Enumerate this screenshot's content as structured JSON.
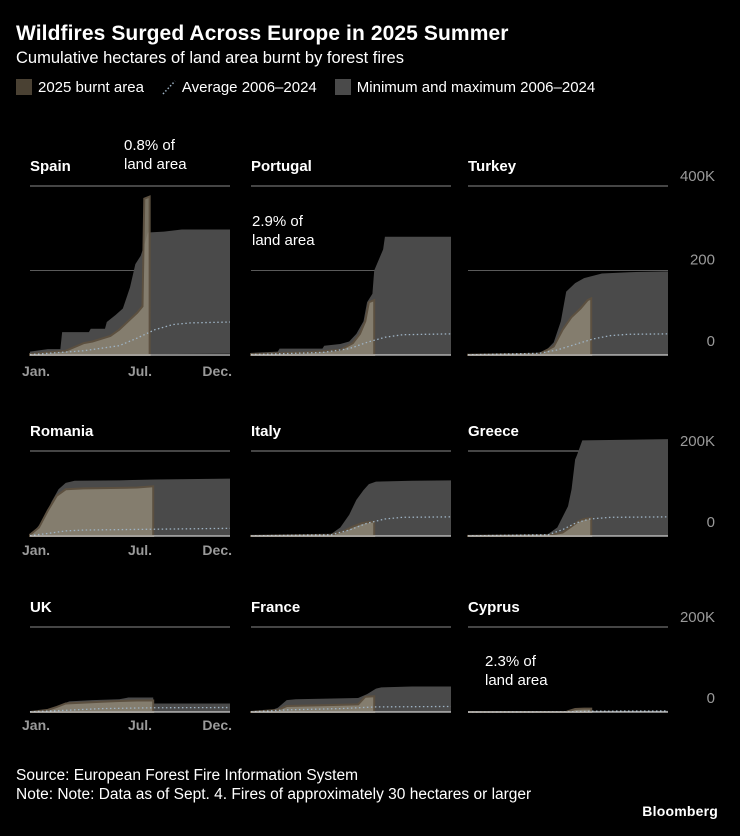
{
  "title": "Wildfires Surged Across Europe in 2025 Summer",
  "subtitle": "Cumulative hectares of land area burnt by forest fires",
  "legend": {
    "burnt": "2025 burnt area",
    "average": "Average 2006–2024",
    "minmax": "Minimum and maximum 2006–2024"
  },
  "colors": {
    "background": "#000000",
    "burnt_fill": "#8e8674",
    "burnt_edge": "#5c5040",
    "minmax_fill": "#4a4a4a",
    "average_line": "#9eb3c4",
    "grid": "#8a8a8a",
    "tick_text": "#9a9a9a"
  },
  "footer": {
    "source": "Source: European Forest Fire Information System",
    "note": "Note: Note: Data as of Sept. 4. Fires of approximately 30 hectares or larger"
  },
  "brand": "Bloomberg",
  "chart_data": [
    {
      "type": "area",
      "name": "Spain",
      "ylim": [
        0,
        400000
      ],
      "annotation": "0.8% of\nland area",
      "y_ticks": [],
      "x_ticks": [
        "Jan.",
        "Jul.",
        "Dec."
      ],
      "max": [
        [
          1,
          8000
        ],
        [
          2,
          14000
        ],
        [
          2.7,
          14000
        ],
        [
          2.8,
          54000
        ],
        [
          4.3,
          54000
        ],
        [
          4.4,
          62000
        ],
        [
          5.2,
          62000
        ],
        [
          5.3,
          78000
        ],
        [
          5.8,
          95000
        ],
        [
          6.2,
          110000
        ],
        [
          6.6,
          160000
        ],
        [
          6.9,
          215000
        ],
        [
          7.2,
          235000
        ],
        [
          7.4,
          260000
        ],
        [
          7.6,
          290000
        ],
        [
          8.5,
          292000
        ],
        [
          9.5,
          297000
        ],
        [
          12.2,
          297000
        ]
      ],
      "min": [
        [
          1,
          500
        ],
        [
          7.5,
          2000
        ],
        [
          12.2,
          3000
        ]
      ],
      "avg": [
        [
          1,
          1000
        ],
        [
          4,
          10000
        ],
        [
          6,
          22000
        ],
        [
          7,
          40000
        ],
        [
          8,
          60000
        ],
        [
          9,
          72000
        ],
        [
          10,
          76000
        ],
        [
          12.2,
          78000
        ]
      ],
      "burnt": [
        [
          1,
          2000
        ],
        [
          3,
          10000
        ],
        [
          4,
          28000
        ],
        [
          4.5,
          32000
        ],
        [
          5.5,
          45000
        ],
        [
          6,
          60000
        ],
        [
          6.5,
          80000
        ],
        [
          7,
          100000
        ],
        [
          7.3,
          115000
        ],
        [
          7.4,
          370000
        ],
        [
          7.7,
          375000
        ],
        [
          7.7,
          0
        ]
      ]
    },
    {
      "type": "area",
      "name": "Portugal",
      "ylim": [
        0,
        200000
      ],
      "annotation": "2.9% of\nland area",
      "y_ticks": [],
      "x_ticks": [],
      "max": [
        [
          1,
          5000
        ],
        [
          2.5,
          8000
        ],
        [
          2.6,
          15000
        ],
        [
          5,
          15000
        ],
        [
          5.1,
          22000
        ],
        [
          6,
          26000
        ],
        [
          6.5,
          32000
        ],
        [
          6.9,
          50000
        ],
        [
          7.3,
          80000
        ],
        [
          7.5,
          125000
        ],
        [
          7.8,
          145000
        ],
        [
          7.9,
          200000
        ],
        [
          8.4,
          250000
        ],
        [
          8.5,
          280000
        ],
        [
          12.2,
          280000
        ]
      ],
      "min": [
        [
          1,
          300
        ],
        [
          12.2,
          1500
        ]
      ],
      "avg": [
        [
          1,
          1000
        ],
        [
          5,
          6000
        ],
        [
          6.5,
          15000
        ],
        [
          7.5,
          30000
        ],
        [
          8.5,
          42000
        ],
        [
          9.5,
          48000
        ],
        [
          12.2,
          50000
        ]
      ],
      "burnt": [
        [
          1,
          2000
        ],
        [
          4,
          6000
        ],
        [
          6,
          12000
        ],
        [
          6.7,
          28000
        ],
        [
          7.1,
          50000
        ],
        [
          7.4,
          80000
        ],
        [
          7.6,
          125000
        ],
        [
          7.9,
          130000
        ],
        [
          7.9,
          0
        ]
      ]
    },
    {
      "type": "area",
      "name": "Turkey",
      "ylim": [
        0,
        400000
      ],
      "y_ticks": [
        "400K",
        "200",
        "0"
      ],
      "x_ticks": [],
      "max": [
        [
          1,
          500
        ],
        [
          4.5,
          3000
        ],
        [
          5.3,
          8000
        ],
        [
          5.8,
          30000
        ],
        [
          6.2,
          80000
        ],
        [
          6.5,
          150000
        ],
        [
          7,
          170000
        ],
        [
          7.5,
          182000
        ],
        [
          8.5,
          193000
        ],
        [
          10,
          196000
        ],
        [
          12.2,
          198000
        ]
      ],
      "min": [
        [
          1,
          0
        ],
        [
          12.2,
          500
        ]
      ],
      "avg": [
        [
          1,
          500
        ],
        [
          5,
          4000
        ],
        [
          6,
          12000
        ],
        [
          7,
          25000
        ],
        [
          8,
          38000
        ],
        [
          9,
          46000
        ],
        [
          10,
          49000
        ],
        [
          12.2,
          50000
        ]
      ],
      "burnt": [
        [
          1,
          500
        ],
        [
          5,
          3000
        ],
        [
          5.8,
          20000
        ],
        [
          6.3,
          60000
        ],
        [
          6.8,
          90000
        ],
        [
          7.3,
          110000
        ],
        [
          7.7,
          130000
        ],
        [
          7.9,
          134000
        ],
        [
          7.9,
          0
        ]
      ]
    },
    {
      "type": "area",
      "name": "Romania",
      "ylim": [
        0,
        200000
      ],
      "y_ticks": [],
      "x_ticks": [
        "Jan.",
        "Jul.",
        "Dec."
      ],
      "max": [
        [
          1,
          5000
        ],
        [
          1.3,
          15000
        ],
        [
          1.8,
          40000
        ],
        [
          2.2,
          80000
        ],
        [
          2.6,
          110000
        ],
        [
          3,
          125000
        ],
        [
          3.5,
          130000
        ],
        [
          6,
          131000
        ],
        [
          8,
          133000
        ],
        [
          12.2,
          135000
        ]
      ],
      "min": [
        [
          1,
          300
        ],
        [
          12.2,
          1500
        ]
      ],
      "avg": [
        [
          1,
          1000
        ],
        [
          2,
          6000
        ],
        [
          3,
          12000
        ],
        [
          4,
          14000
        ],
        [
          8,
          16000
        ],
        [
          12.2,
          18000
        ]
      ],
      "burnt": [
        [
          1,
          3000
        ],
        [
          1.5,
          20000
        ],
        [
          2,
          60000
        ],
        [
          2.5,
          95000
        ],
        [
          3,
          110000
        ],
        [
          4,
          112000
        ],
        [
          7,
          114000
        ],
        [
          7.9,
          117000
        ],
        [
          7.9,
          0
        ]
      ]
    },
    {
      "type": "area",
      "name": "Italy",
      "ylim": [
        0,
        200000
      ],
      "y_ticks": [],
      "x_ticks": [],
      "max": [
        [
          1,
          500
        ],
        [
          3,
          2000
        ],
        [
          5.5,
          5000
        ],
        [
          6,
          20000
        ],
        [
          6.5,
          50000
        ],
        [
          6.9,
          85000
        ],
        [
          7.3,
          108000
        ],
        [
          7.6,
          122000
        ],
        [
          8,
          128000
        ],
        [
          10,
          130000
        ],
        [
          12.2,
          131000
        ]
      ],
      "min": [
        [
          1,
          0
        ],
        [
          12.2,
          500
        ]
      ],
      "avg": [
        [
          1,
          300
        ],
        [
          5.5,
          3000
        ],
        [
          6.5,
          14000
        ],
        [
          7.5,
          30000
        ],
        [
          8.5,
          40000
        ],
        [
          9.5,
          44000
        ],
        [
          12.2,
          45000
        ]
      ],
      "burnt": [
        [
          1,
          300
        ],
        [
          5.5,
          3000
        ],
        [
          6.2,
          12000
        ],
        [
          6.7,
          22000
        ],
        [
          7.2,
          30000
        ],
        [
          7.6,
          33000
        ],
        [
          7.9,
          34000
        ],
        [
          7.9,
          0
        ]
      ]
    },
    {
      "type": "area",
      "name": "Greece",
      "ylim": [
        0,
        200000
      ],
      "y_ticks": [
        "200K",
        "0"
      ],
      "x_ticks": [],
      "max": [
        [
          1,
          500
        ],
        [
          5,
          2000
        ],
        [
          5.5,
          5000
        ],
        [
          6,
          20000
        ],
        [
          6.3,
          45000
        ],
        [
          6.6,
          70000
        ],
        [
          6.8,
          110000
        ],
        [
          7,
          180000
        ],
        [
          7.1,
          190000
        ],
        [
          7.4,
          225000
        ],
        [
          12.2,
          228000
        ]
      ],
      "min": [
        [
          1,
          0
        ],
        [
          12.2,
          500
        ]
      ],
      "avg": [
        [
          1,
          300
        ],
        [
          5.5,
          3000
        ],
        [
          6.3,
          15000
        ],
        [
          7,
          30000
        ],
        [
          7.8,
          40000
        ],
        [
          9,
          44000
        ],
        [
          12.2,
          45000
        ]
      ],
      "burnt": [
        [
          1,
          300
        ],
        [
          5.5,
          2000
        ],
        [
          6.3,
          8000
        ],
        [
          6.7,
          20000
        ],
        [
          7.2,
          35000
        ],
        [
          7.5,
          40000
        ],
        [
          7.9,
          42000
        ],
        [
          7.9,
          0
        ]
      ]
    },
    {
      "type": "area",
      "name": "UK",
      "ylim": [
        0,
        200000
      ],
      "y_ticks": [],
      "x_ticks": [
        "Jan.",
        "Jul.",
        "Dec."
      ],
      "max": [
        [
          1,
          0
        ],
        [
          1.8,
          2000
        ],
        [
          2.3,
          8000
        ],
        [
          2.8,
          18000
        ],
        [
          3.2,
          25000
        ],
        [
          4.5,
          28000
        ],
        [
          6,
          30000
        ],
        [
          6.5,
          34000
        ],
        [
          7.9,
          34000
        ],
        [
          7.9,
          20000
        ],
        [
          12.2,
          20000
        ]
      ],
      "min": [
        [
          1,
          0
        ],
        [
          12.2,
          300
        ]
      ],
      "avg": [
        [
          1,
          500
        ],
        [
          3,
          4000
        ],
        [
          5,
          8000
        ],
        [
          8,
          10000
        ],
        [
          12.2,
          10500
        ]
      ],
      "burnt": [
        [
          1,
          0
        ],
        [
          2,
          5000
        ],
        [
          2.5,
          12000
        ],
        [
          3,
          20000
        ],
        [
          4,
          22000
        ],
        [
          5,
          24000
        ],
        [
          6,
          26000
        ],
        [
          7,
          27000
        ],
        [
          7.9,
          27000
        ],
        [
          7.9,
          0
        ]
      ]
    },
    {
      "type": "area",
      "name": "France",
      "ylim": [
        0,
        200000
      ],
      "y_ticks": [],
      "x_ticks": [],
      "max": [
        [
          1,
          300
        ],
        [
          2,
          2000
        ],
        [
          2.5,
          10000
        ],
        [
          3,
          28000
        ],
        [
          3.5,
          30000
        ],
        [
          7,
          33000
        ],
        [
          7.5,
          42000
        ],
        [
          8,
          55000
        ],
        [
          8.3,
          58000
        ],
        [
          10,
          60000
        ],
        [
          12.2,
          60000
        ]
      ],
      "min": [
        [
          1,
          0
        ],
        [
          12.2,
          300
        ]
      ],
      "avg": [
        [
          1,
          300
        ],
        [
          3,
          5000
        ],
        [
          6,
          8000
        ],
        [
          8,
          12000
        ],
        [
          12.2,
          13000
        ]
      ],
      "burnt": [
        [
          1,
          300
        ],
        [
          2.5,
          5000
        ],
        [
          3,
          14000
        ],
        [
          5,
          16000
        ],
        [
          7,
          18000
        ],
        [
          7.4,
          36000
        ],
        [
          7.9,
          37000
        ],
        [
          7.9,
          0
        ]
      ]
    },
    {
      "type": "area",
      "name": "Cyprus",
      "ylim": [
        0,
        200000
      ],
      "annotation": "2.3% of\nland area",
      "y_ticks": [
        "200K",
        "0"
      ],
      "x_ticks": [],
      "max": [
        [
          1,
          0
        ],
        [
          6.5,
          0
        ],
        [
          6.6,
          2000
        ],
        [
          7,
          8000
        ],
        [
          7.8,
          8000
        ],
        [
          7.9,
          3000
        ],
        [
          12.2,
          3000
        ]
      ],
      "min": [
        [
          1,
          0
        ],
        [
          12.2,
          0
        ]
      ],
      "avg": [
        [
          1,
          0
        ],
        [
          6.5,
          300
        ],
        [
          8,
          2000
        ],
        [
          12.2,
          2500
        ]
      ],
      "burnt": [
        [
          1,
          0
        ],
        [
          6.5,
          0
        ],
        [
          6.6,
          2000
        ],
        [
          7,
          7000
        ],
        [
          7.5,
          8000
        ],
        [
          7.9,
          8000
        ],
        [
          7.9,
          0
        ]
      ]
    }
  ]
}
